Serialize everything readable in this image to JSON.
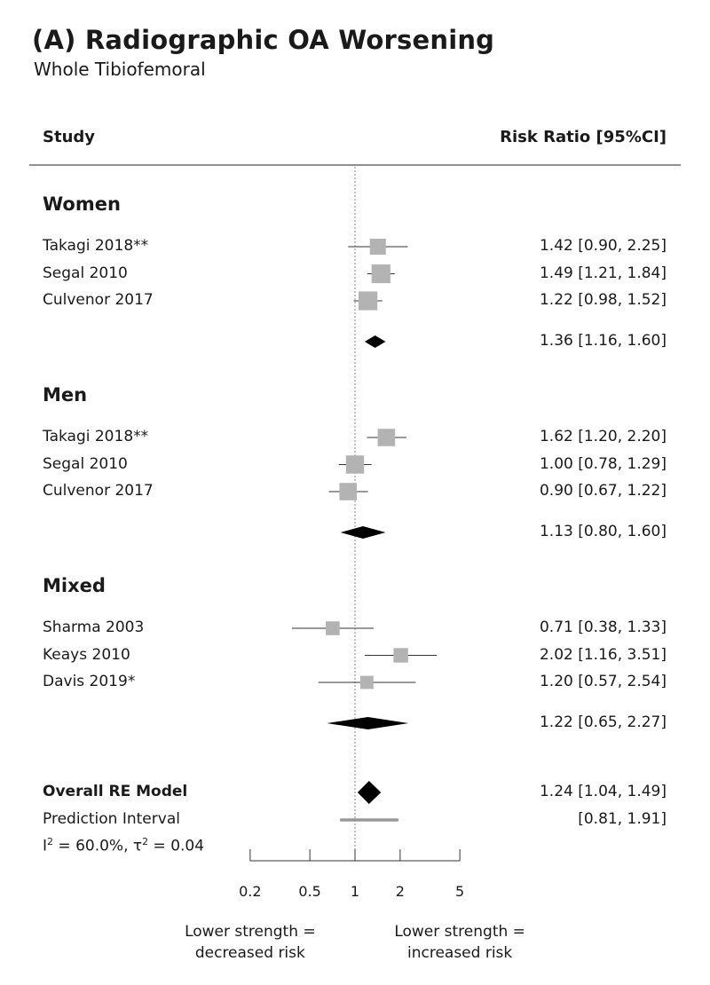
{
  "title": "(A) Radiographic OA Worsening",
  "subtitle": "Whole Tibiofemoral",
  "header": {
    "study_label": "Study",
    "effect_label": "Risk Ratio [95%CI]"
  },
  "chart_data": {
    "type": "forest",
    "x_scale": "log",
    "x_ticks": [
      0.2,
      0.5,
      1,
      2,
      5
    ],
    "x_tick_labels": [
      "0.2",
      "0.5",
      "1",
      "2",
      "5"
    ],
    "reference_line": 1,
    "groups": [
      {
        "name": "Women",
        "studies": [
          {
            "label": "Takagi 2018**",
            "rr": 1.42,
            "lo": 0.9,
            "hi": 2.25,
            "text": "1.42 [0.90, 2.25]",
            "weight": 1.0
          },
          {
            "label": "Segal 2010",
            "rr": 1.49,
            "lo": 1.21,
            "hi": 1.84,
            "text": "1.49 [1.21, 1.84]",
            "weight": 1.4
          },
          {
            "label": "Culvenor 2017",
            "rr": 1.22,
            "lo": 0.98,
            "hi": 1.52,
            "text": "1.22 [0.98, 1.52]",
            "weight": 1.4
          }
        ],
        "summary": {
          "rr": 1.36,
          "lo": 1.16,
          "hi": 1.6,
          "text": "1.36 [1.16, 1.60]"
        }
      },
      {
        "name": "Men",
        "studies": [
          {
            "label": "Takagi 2018**",
            "rr": 1.62,
            "lo": 1.2,
            "hi": 2.2,
            "text": "1.62 [1.20, 2.20]",
            "weight": 1.2
          },
          {
            "label": "Segal 2010",
            "rr": 1.0,
            "lo": 0.78,
            "hi": 1.29,
            "text": "1.00 [0.78, 1.29]",
            "weight": 1.3
          },
          {
            "label": "Culvenor 2017",
            "rr": 0.9,
            "lo": 0.67,
            "hi": 1.22,
            "text": "0.90 [0.67, 1.22]",
            "weight": 1.2
          }
        ],
        "summary": {
          "rr": 1.13,
          "lo": 0.8,
          "hi": 1.6,
          "text": "1.13 [0.80, 1.60]"
        }
      },
      {
        "name": "Mixed",
        "studies": [
          {
            "label": "Sharma 2003",
            "rr": 0.71,
            "lo": 0.38,
            "hi": 1.33,
            "text": "0.71 [0.38, 1.33]",
            "weight": 0.7
          },
          {
            "label": "Keays 2010",
            "rr": 2.02,
            "lo": 1.16,
            "hi": 3.51,
            "text": "2.02 [1.16, 3.51]",
            "weight": 0.8
          },
          {
            "label": "Davis 2019*",
            "rr": 1.2,
            "lo": 0.57,
            "hi": 2.54,
            "text": "1.20 [0.57, 2.54]",
            "weight": 0.6
          }
        ],
        "summary": {
          "rr": 1.22,
          "lo": 0.65,
          "hi": 2.27,
          "text": "1.22 [0.65, 2.27]"
        }
      }
    ],
    "overall": {
      "label": "Overall RE Model",
      "rr": 1.24,
      "lo": 1.04,
      "hi": 1.49,
      "text": "1.24 [1.04, 1.49]"
    },
    "prediction_interval": {
      "label": "Prediction Interval",
      "lo": 0.81,
      "hi": 1.91,
      "text": "[0.81, 1.91]"
    },
    "heterogeneity": {
      "i2_prefix": "I",
      "i2_rest": " = 60.0%, ",
      "tau_prefix": "τ",
      "tau_rest": " = 0.04",
      "sup": "2"
    },
    "x_caption_left": [
      "Lower strength =",
      "decreased risk"
    ],
    "x_caption_right": [
      "Lower strength =",
      "increased risk"
    ],
    "colors": {
      "study_box": "#b3b3b3",
      "summary": "#000000",
      "pi_bar": "#999999",
      "reference": "#888888"
    }
  }
}
